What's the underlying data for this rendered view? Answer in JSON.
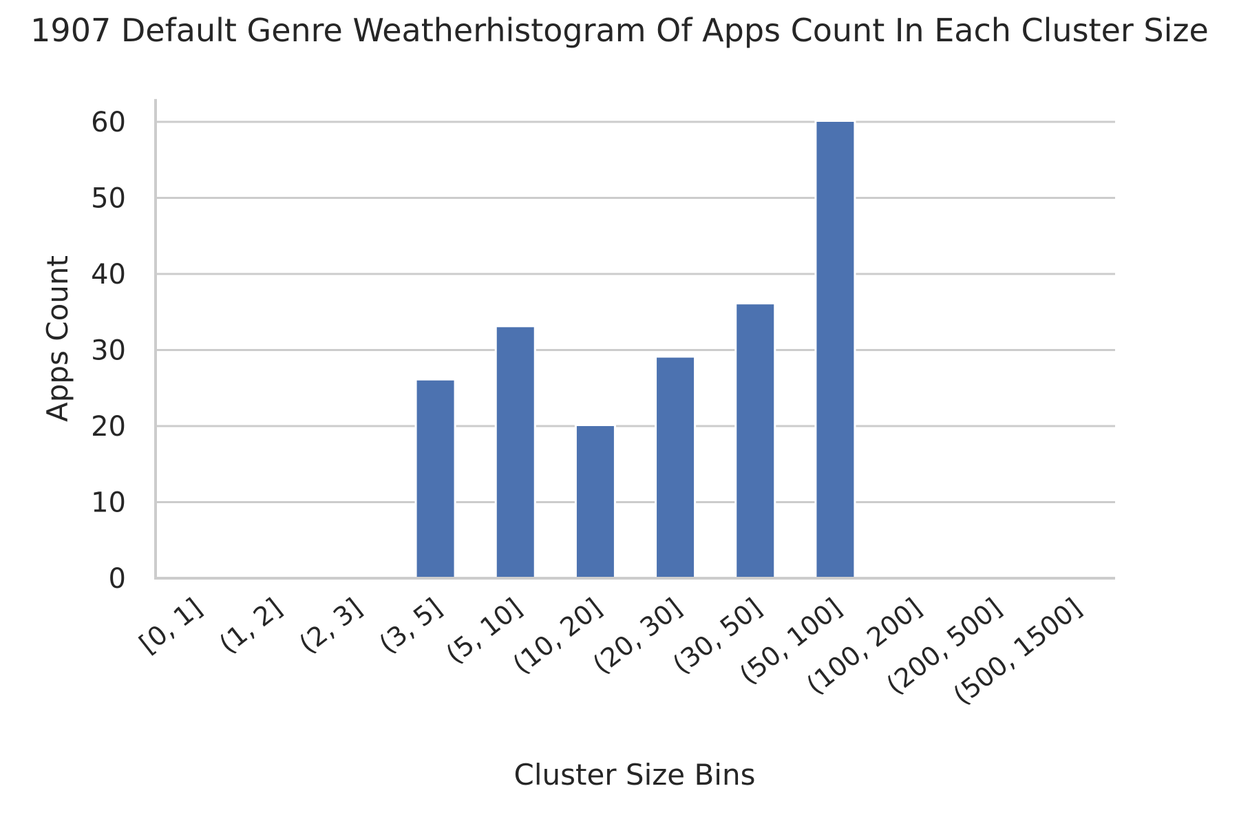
{
  "chart_data": {
    "type": "bar",
    "title": "1907 Default Genre Weatherhistogram Of Apps Count In Each Cluster Size",
    "xlabel": "Cluster Size Bins",
    "ylabel": "Apps Count",
    "categories": [
      "[0, 1]",
      "(1, 2]",
      "(2, 3]",
      "(3, 5]",
      "(5, 10]",
      "(10, 20]",
      "(20, 30]",
      "(30, 50]",
      "(50, 100]",
      "(100, 200]",
      "(200, 500]",
      "(500, 1500]"
    ],
    "values": [
      0,
      0,
      0,
      26,
      33,
      20,
      29,
      36,
      60,
      0,
      0,
      0
    ],
    "ylim": [
      0,
      63
    ],
    "yticks": [
      0,
      10,
      20,
      30,
      40,
      50,
      60
    ],
    "grid": "horizontal",
    "bar_color": "#4c72b0",
    "grid_color": "#cccccc"
  }
}
